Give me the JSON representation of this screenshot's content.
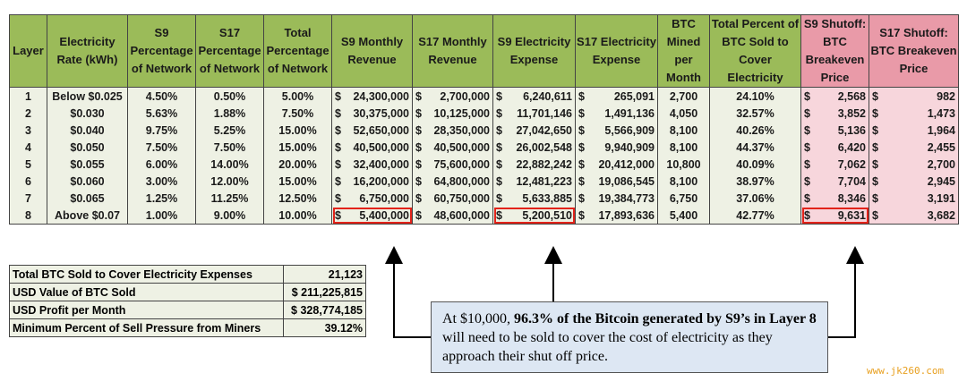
{
  "table": {
    "headers": [
      "Layer",
      "Electricity Rate (kWh)",
      "S9 Percentage of Network",
      "S17 Percentage of Network",
      "Total Percentage of Network",
      "S9 Monthly Revenue",
      "S17 Monthly Revenue",
      "S9 Electricity Expense",
      "S17 Electricity Expense",
      "BTC Mined per Month",
      "Total Percent of BTC Sold to Cover Electricity",
      "S9 Shutoff: BTC Breakeven Price",
      "S17 Shutoff: BTC Breakeven Price"
    ],
    "rows": [
      [
        "1",
        "Below $0.025",
        "4.50%",
        "0.50%",
        "5.00%",
        "24,300,000",
        "2,700,000",
        "6,240,611",
        "265,091",
        "2,700",
        "24.10%",
        "2,568",
        "982"
      ],
      [
        "2",
        "$0.030",
        "5.63%",
        "1.88%",
        "7.50%",
        "30,375,000",
        "10,125,000",
        "11,701,146",
        "1,491,136",
        "4,050",
        "32.57%",
        "3,852",
        "1,473"
      ],
      [
        "3",
        "$0.040",
        "9.75%",
        "5.25%",
        "15.00%",
        "52,650,000",
        "28,350,000",
        "27,042,650",
        "5,566,909",
        "8,100",
        "40.26%",
        "5,136",
        "1,964"
      ],
      [
        "4",
        "$0.050",
        "7.50%",
        "7.50%",
        "15.00%",
        "40,500,000",
        "40,500,000",
        "26,002,548",
        "9,940,909",
        "8,100",
        "44.37%",
        "6,420",
        "2,455"
      ],
      [
        "5",
        "$0.055",
        "6.00%",
        "14.00%",
        "20.00%",
        "32,400,000",
        "75,600,000",
        "22,882,242",
        "20,412,000",
        "10,800",
        "40.09%",
        "7,062",
        "2,700"
      ],
      [
        "6",
        "$0.060",
        "3.00%",
        "12.00%",
        "15.00%",
        "16,200,000",
        "64,800,000",
        "12,481,223",
        "19,086,545",
        "8,100",
        "38.97%",
        "7,704",
        "2,945"
      ],
      [
        "7",
        "$0.065",
        "1.25%",
        "11.25%",
        "12.50%",
        "6,750,000",
        "60,750,000",
        "5,633,885",
        "19,384,773",
        "6,750",
        "37.06%",
        "8,346",
        "3,191"
      ],
      [
        "8",
        "Above $0.07",
        "1.00%",
        "9.00%",
        "10.00%",
        "5,400,000",
        "48,600,000",
        "5,200,510",
        "17,893,636",
        "5,400",
        "42.77%",
        "9,631",
        "3,682"
      ]
    ]
  },
  "summary": [
    {
      "label": "Total BTC Sold to Cover Electricity Expenses",
      "value": "21,123"
    },
    {
      "label": "USD Value of BTC Sold",
      "value": "$ 211,225,815"
    },
    {
      "label": "USD Profit per Month",
      "value": "$ 328,774,185"
    },
    {
      "label": "Minimum Percent of Sell Pressure from Miners",
      "value": "39.12%"
    }
  ],
  "callout": {
    "pre": "At $10,000, ",
    "bold": "96.3% of the Bitcoin generated by S9’s in Layer 8",
    "post": " will need to be sold to cover the cost of electricity as they approach their shut off price."
  },
  "watermark": "www.jk260.com",
  "currency_symbol": "$",
  "colors": {
    "header_green": "#9bbb59",
    "header_pink": "#e99aa8",
    "highlight_red": "#e2231a",
    "callout_bg": "#dde7f3"
  }
}
